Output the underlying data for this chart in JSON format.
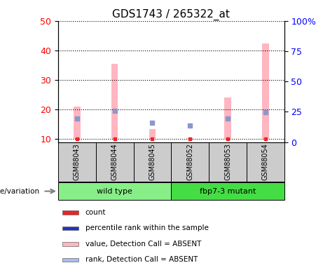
{
  "title": "GDS1743 / 265322_at",
  "samples": [
    "GSM88043",
    "GSM88044",
    "GSM88045",
    "GSM88052",
    "GSM88053",
    "GSM88054"
  ],
  "groups": [
    "wild type",
    "fbp7-3 mutant"
  ],
  "ylim_left": [
    9,
    50
  ],
  "ylim_right": [
    0,
    100
  ],
  "yticks_left": [
    10,
    20,
    30,
    40,
    50
  ],
  "yticks_right": [
    0,
    25,
    50,
    75,
    100
  ],
  "yticklabels_right": [
    "0",
    "25",
    "50",
    "75",
    "100%"
  ],
  "pink_bar_tops": [
    21,
    35.5,
    13.5,
    10.2,
    24,
    42.5
  ],
  "blue_sq_y": [
    17,
    19.5,
    15.5,
    14.5,
    17,
    19
  ],
  "red_sq_y": [
    10,
    10,
    10,
    10,
    10,
    10
  ],
  "bar_bottom": 10,
  "bar_width": 0.18,
  "pink_color": "#FFB6C1",
  "red_color": "#EE2222",
  "blue_sq_color": "#8899CC",
  "dark_blue_color": "#2233BB",
  "bg_label": "#CCCCCC",
  "bg_wildtype": "#88EE88",
  "bg_mutant": "#44DD44",
  "legend_items": [
    {
      "color": "#EE2222",
      "label": "count"
    },
    {
      "color": "#2233BB",
      "label": "percentile rank within the sample"
    },
    {
      "color": "#FFB6C1",
      "label": "value, Detection Call = ABSENT"
    },
    {
      "color": "#AABBEE",
      "label": "rank, Detection Call = ABSENT"
    }
  ],
  "arrow_label": "genotype/variation"
}
